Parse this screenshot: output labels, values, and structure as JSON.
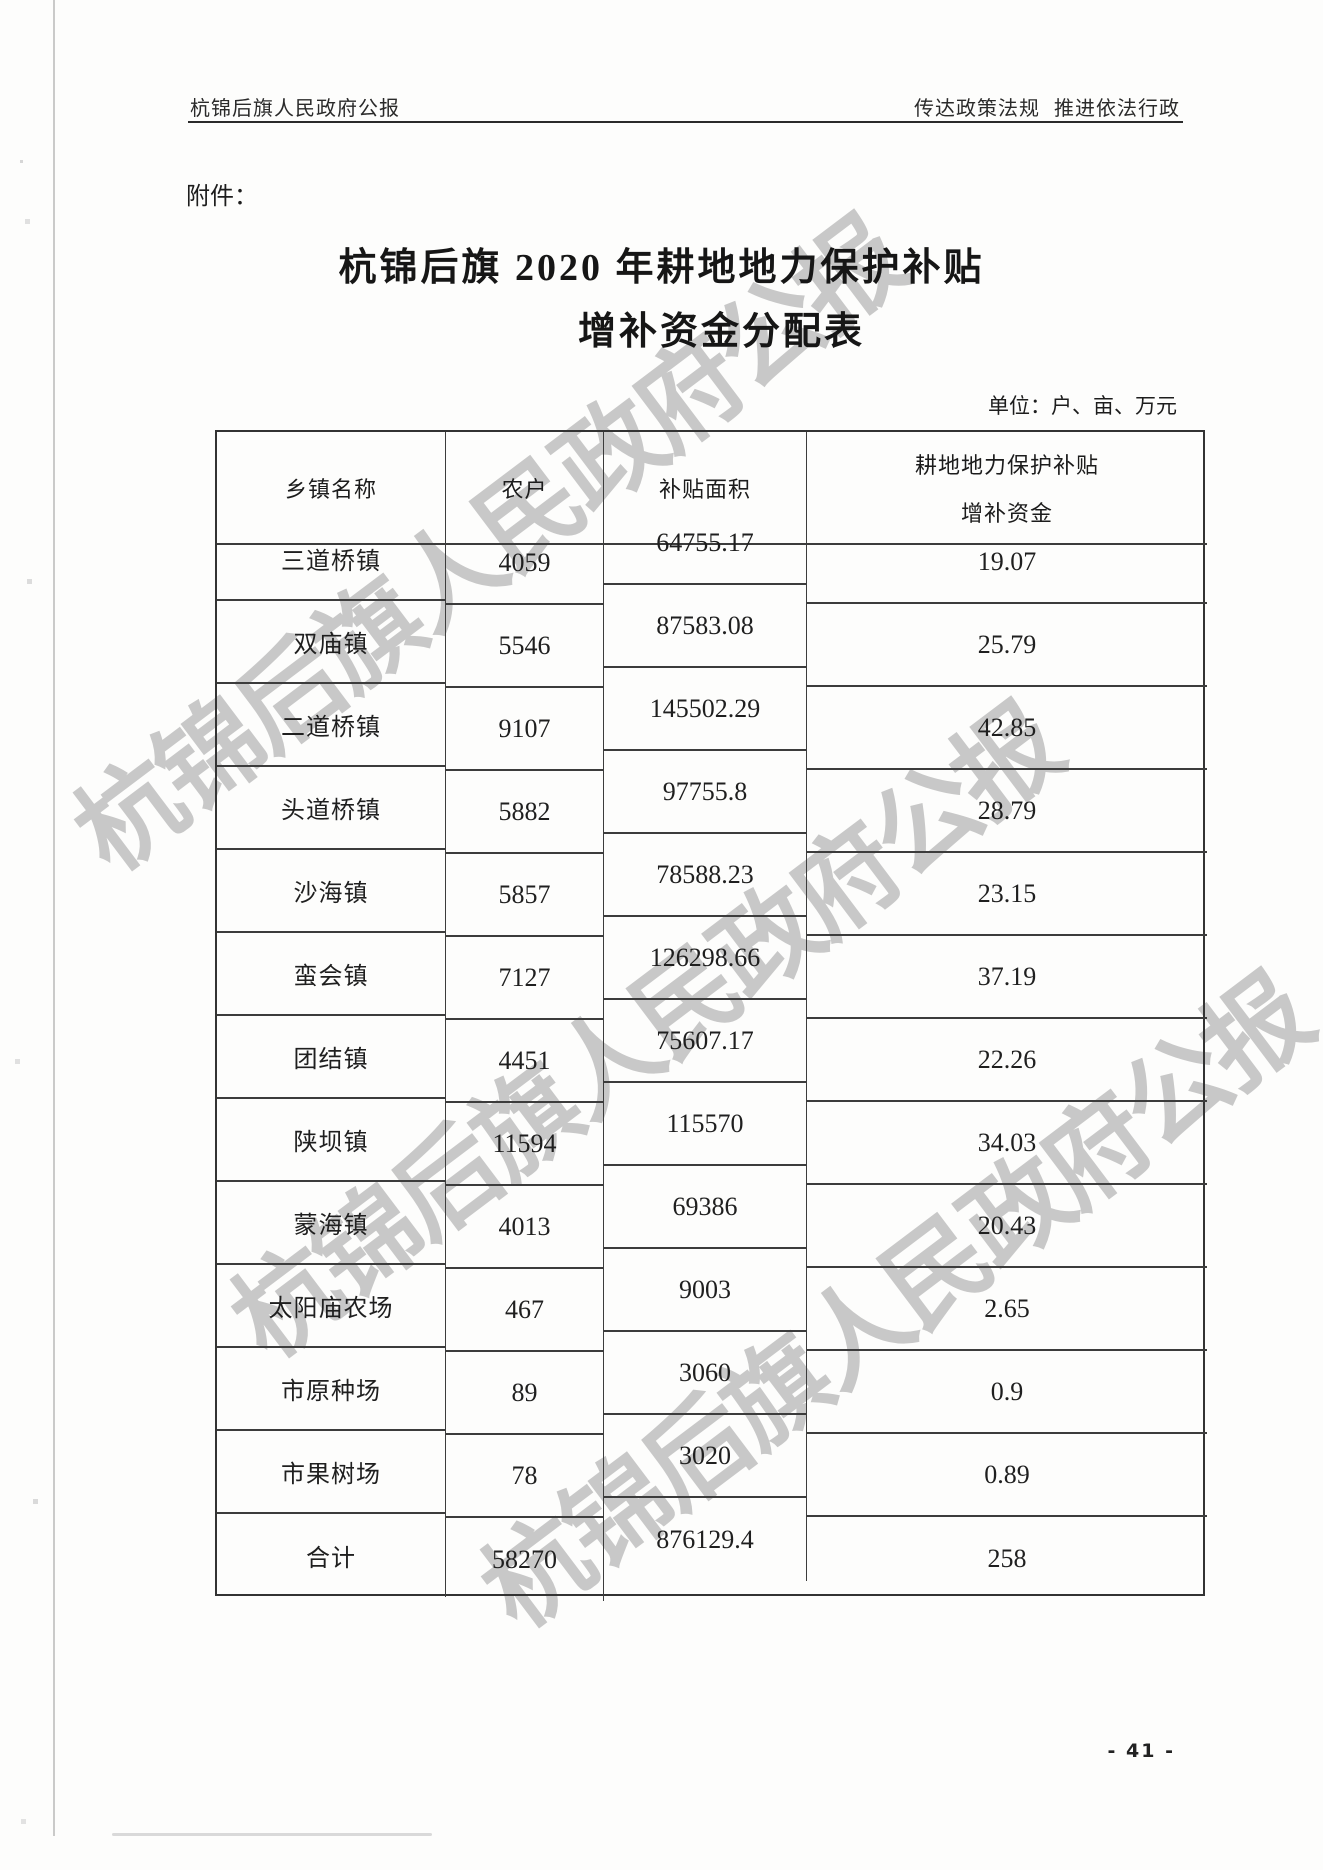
{
  "page": {
    "header_left": "杭锦后旗人民政府公报",
    "header_right": "传达政策法规 推进依法行政",
    "attachment_label": "附件：",
    "title_line1": "杭锦后旗 2020 年耕地地力保护补贴",
    "title_line2": "增补资金分配表",
    "unit_note": "单位：户、亩、万元",
    "watermark_text": "杭锦后旗人民政府公报",
    "page_number": "- 41 -"
  },
  "table": {
    "headers": {
      "col1": "乡镇名称",
      "col2": "农户",
      "col3": "补贴面积",
      "col4_line1": "耕地地力保护补贴",
      "col4_line2": "增补资金"
    },
    "rows": [
      {
        "name": "三道桥镇",
        "households": "4059",
        "area": "64755.17",
        "fund": "19.07"
      },
      {
        "name": "双庙镇",
        "households": "5546",
        "area": "87583.08",
        "fund": "25.79"
      },
      {
        "name": "二道桥镇",
        "households": "9107",
        "area": "145502.29",
        "fund": "42.85"
      },
      {
        "name": "头道桥镇",
        "households": "5882",
        "area": "97755.8",
        "fund": "28.79"
      },
      {
        "name": "沙海镇",
        "households": "5857",
        "area": "78588.23",
        "fund": "23.15"
      },
      {
        "name": "蛮会镇",
        "households": "7127",
        "area": "126298.66",
        "fund": "37.19"
      },
      {
        "name": "团结镇",
        "households": "4451",
        "area": "75607.17",
        "fund": "22.26"
      },
      {
        "name": "陕坝镇",
        "households": "11594",
        "area": "115570",
        "fund": "34.03"
      },
      {
        "name": "蒙海镇",
        "households": "4013",
        "area": "69386",
        "fund": "20.43"
      },
      {
        "name": "太阳庙农场",
        "households": "467",
        "area": "9003",
        "fund": "2.65"
      },
      {
        "name": "市原种场",
        "households": "89",
        "area": "3060",
        "fund": "0.9"
      },
      {
        "name": "市果树场",
        "households": "78",
        "area": "3020",
        "fund": "0.89"
      },
      {
        "name": "合计",
        "households": "58270",
        "area": "876129.4",
        "fund": "258"
      }
    ]
  }
}
